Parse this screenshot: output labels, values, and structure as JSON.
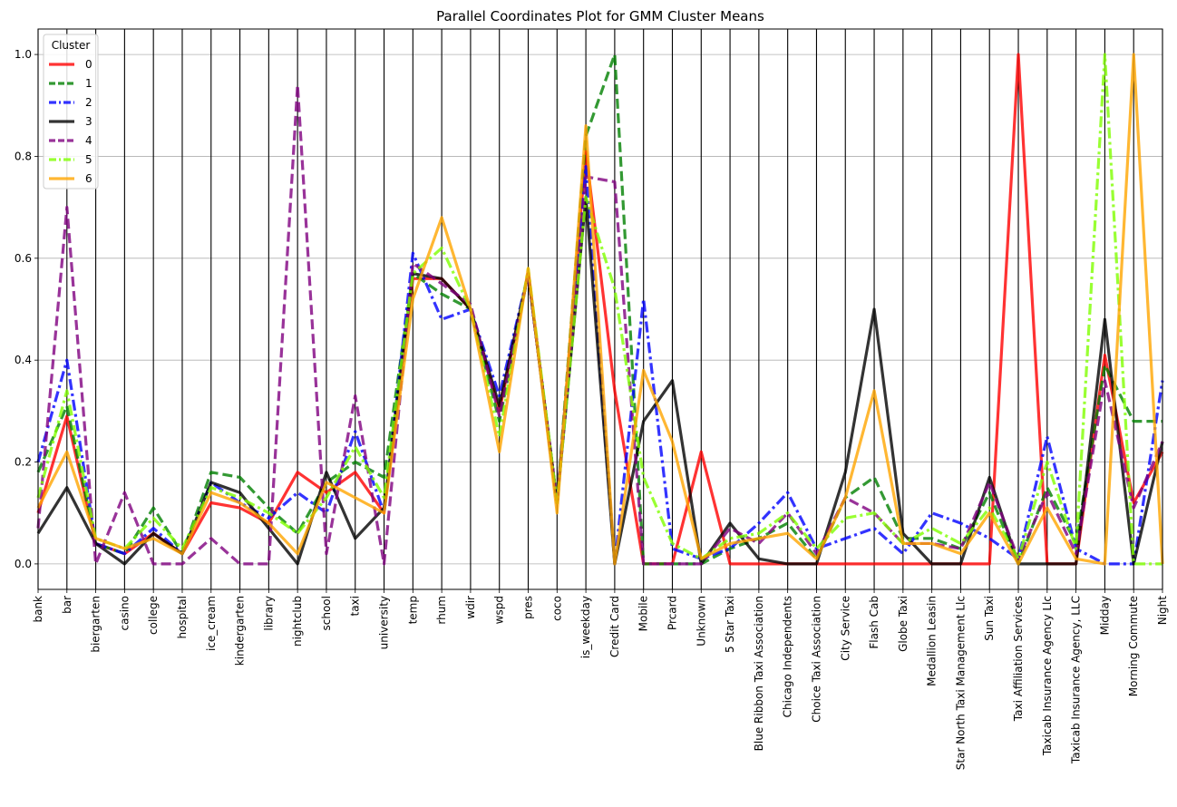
{
  "chart_data": {
    "type": "line",
    "subtype": "parallel-coordinates",
    "title": "Parallel Coordinates Plot for GMM Cluster Means",
    "xlabel": "",
    "ylabel": "",
    "ylim": [
      -0.05,
      1.05
    ],
    "yticks": [
      "0.0",
      "0.2",
      "0.4",
      "0.6",
      "0.8",
      "1.0"
    ],
    "grid": true,
    "legend_position": "top-left",
    "legend_title": "Cluster",
    "categories": [
      "bank",
      "bar",
      "biergarten",
      "casino",
      "college",
      "hospital",
      "ice_cream",
      "kindergarten",
      "library",
      "nightclub",
      "school",
      "taxi",
      "university",
      "temp",
      "rhum",
      "wdir",
      "wspd",
      "pres",
      "coco",
      "is_weekday",
      "Credit Card",
      "Mobile",
      "Prcard",
      "Unknown",
      "5 Star Taxi",
      "Blue Ribbon Taxi Association",
      "Chicago Independents",
      "Choice Taxi Association",
      "City Service",
      "Flash Cab",
      "Globe Taxi",
      "Medallion Leasin",
      "Star North Taxi Management Llc",
      "Sun Taxi",
      "Taxi Affiliation Services",
      "Taxicab Insurance Agency Llc",
      "Taxicab Insurance Agency, LLC",
      "Midday",
      "Morning Commute",
      "Night"
    ],
    "series": [
      {
        "name": "0",
        "color": "#ff0000",
        "dash": "solid",
        "values": [
          0.1,
          0.29,
          0.04,
          0.02,
          0.06,
          0.02,
          0.12,
          0.11,
          0.08,
          0.18,
          0.14,
          0.18,
          0.1,
          0.56,
          0.56,
          0.5,
          0.3,
          0.57,
          0.12,
          0.81,
          0.34,
          0.0,
          0.0,
          0.22,
          0.0,
          0.0,
          0.0,
          0.0,
          0.0,
          0.0,
          0.0,
          0.0,
          0.0,
          0.0,
          1.0,
          0.0,
          0.0,
          0.41,
          0.12,
          0.22
        ]
      },
      {
        "name": "1",
        "color": "#008000",
        "dash": "dashed",
        "values": [
          0.18,
          0.31,
          0.04,
          0.02,
          0.11,
          0.02,
          0.18,
          0.17,
          0.11,
          0.06,
          0.16,
          0.2,
          0.17,
          0.57,
          0.53,
          0.5,
          0.28,
          0.57,
          0.12,
          0.84,
          1.0,
          0.0,
          0.0,
          0.0,
          0.03,
          0.05,
          0.08,
          0.01,
          0.13,
          0.17,
          0.05,
          0.05,
          0.03,
          0.14,
          0.0,
          0.15,
          0.04,
          0.39,
          0.28,
          0.28
        ]
      },
      {
        "name": "2",
        "color": "#0000ff",
        "dash": "dashdot",
        "values": [
          0.2,
          0.4,
          0.04,
          0.02,
          0.07,
          0.02,
          0.16,
          0.12,
          0.09,
          0.14,
          0.1,
          0.26,
          0.1,
          0.61,
          0.48,
          0.5,
          0.33,
          0.57,
          0.12,
          0.78,
          0.0,
          0.52,
          0.03,
          0.01,
          0.03,
          0.08,
          0.14,
          0.03,
          0.05,
          0.07,
          0.02,
          0.1,
          0.08,
          0.05,
          0.01,
          0.25,
          0.03,
          0.0,
          0.0,
          0.36
        ]
      },
      {
        "name": "3",
        "color": "#000000",
        "dash": "solid",
        "values": [
          0.06,
          0.15,
          0.04,
          0.0,
          0.06,
          0.02,
          0.16,
          0.14,
          0.07,
          0.0,
          0.18,
          0.05,
          0.11,
          0.57,
          0.56,
          0.5,
          0.31,
          0.57,
          0.12,
          0.72,
          0.0,
          0.28,
          0.36,
          0.0,
          0.08,
          0.01,
          0.0,
          0.0,
          0.18,
          0.5,
          0.06,
          0.0,
          0.0,
          0.17,
          0.0,
          0.0,
          0.0,
          0.48,
          0.0,
          0.24
        ]
      },
      {
        "name": "4",
        "color": "#800080",
        "dash": "dashed",
        "values": [
          0.07,
          0.7,
          0.0,
          0.14,
          0.0,
          0.0,
          0.05,
          0.0,
          0.0,
          0.94,
          0.02,
          0.33,
          0.0,
          0.59,
          0.55,
          0.51,
          0.29,
          0.57,
          0.12,
          0.76,
          0.75,
          0.0,
          0.0,
          0.0,
          0.07,
          0.04,
          0.1,
          0.02,
          0.13,
          0.1,
          0.04,
          0.04,
          0.03,
          0.16,
          0.01,
          0.14,
          0.02,
          0.36,
          0.11,
          0.24
        ]
      },
      {
        "name": "5",
        "color": "#7fff00",
        "dash": "dashdot",
        "values": [
          0.13,
          0.34,
          0.05,
          0.03,
          0.09,
          0.03,
          0.15,
          0.13,
          0.1,
          0.06,
          0.13,
          0.23,
          0.13,
          0.57,
          0.62,
          0.5,
          0.25,
          0.58,
          0.12,
          0.72,
          0.54,
          0.17,
          0.04,
          0.01,
          0.05,
          0.06,
          0.1,
          0.03,
          0.09,
          0.1,
          0.04,
          0.07,
          0.04,
          0.11,
          0.01,
          0.2,
          0.03,
          1.0,
          0.0,
          0.0
        ]
      },
      {
        "name": "6",
        "color": "#ffa500",
        "dash": "solid",
        "values": [
          0.11,
          0.22,
          0.05,
          0.03,
          0.05,
          0.02,
          0.14,
          0.12,
          0.08,
          0.02,
          0.16,
          0.13,
          0.1,
          0.52,
          0.68,
          0.5,
          0.22,
          0.58,
          0.1,
          0.86,
          0.0,
          0.38,
          0.24,
          0.01,
          0.04,
          0.05,
          0.06,
          0.01,
          0.13,
          0.34,
          0.04,
          0.04,
          0.02,
          0.1,
          0.0,
          0.11,
          0.01,
          0.0,
          1.0,
          0.0
        ]
      }
    ]
  }
}
